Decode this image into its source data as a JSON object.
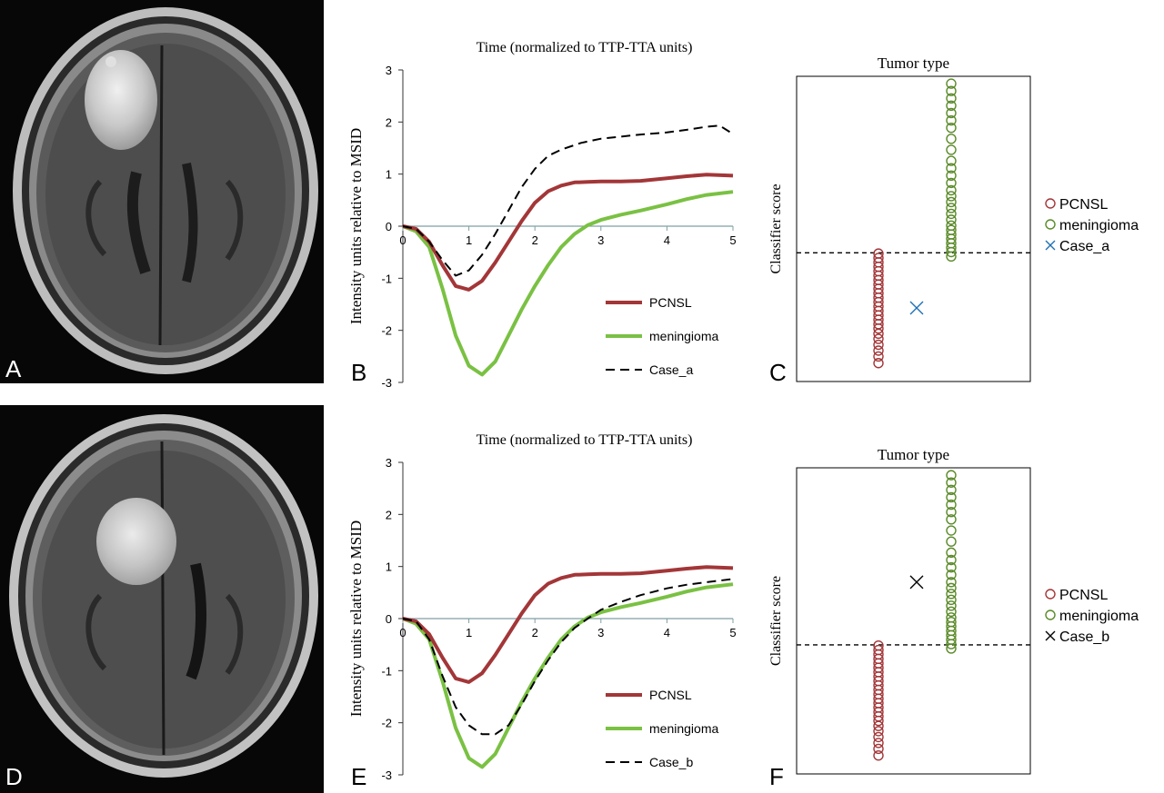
{
  "figure": {
    "panels": {
      "a": {
        "letter": "A"
      },
      "b": {
        "letter": "B"
      },
      "c": {
        "letter": "C"
      },
      "d": {
        "letter": "D"
      },
      "e": {
        "letter": "E"
      },
      "f": {
        "letter": "F"
      }
    }
  },
  "chart_data": [
    {
      "panel": "B",
      "type": "line",
      "title": "Time (normalized to TTP-TTA units)",
      "xlabel": "",
      "ylabel": "Intensity units relative to MSID",
      "xlim": [
        0,
        5
      ],
      "ylim": [
        -3,
        3
      ],
      "xticks": [
        "0",
        "1",
        "2",
        "3",
        "4",
        "5"
      ],
      "yticks": [
        "3",
        "2",
        "1",
        "0",
        "-1",
        "-2",
        "-3"
      ],
      "legend_position": "bottom-right",
      "series": [
        {
          "name": "PCNSL",
          "color": "#a33638",
          "style": "solid",
          "x": [
            0,
            0.2,
            0.4,
            0.6,
            0.8,
            1.0,
            1.2,
            1.4,
            1.6,
            1.8,
            2.0,
            2.2,
            2.4,
            2.6,
            2.8,
            3.0,
            3.3,
            3.6,
            4.0,
            4.3,
            4.6,
            5.0
          ],
          "y": [
            0,
            -0.05,
            -0.3,
            -0.75,
            -1.15,
            -1.22,
            -1.05,
            -0.7,
            -0.3,
            0.1,
            0.45,
            0.67,
            0.78,
            0.84,
            0.85,
            0.86,
            0.86,
            0.87,
            0.92,
            0.96,
            0.99,
            0.97
          ]
        },
        {
          "name": "meningioma",
          "color": "#7ac143",
          "style": "solid",
          "x": [
            0,
            0.2,
            0.4,
            0.6,
            0.8,
            1.0,
            1.2,
            1.4,
            1.6,
            1.8,
            2.0,
            2.2,
            2.4,
            2.6,
            2.8,
            3.0,
            3.3,
            3.6,
            4.0,
            4.3,
            4.6,
            5.0
          ],
          "y": [
            0,
            -0.1,
            -0.4,
            -1.2,
            -2.1,
            -2.68,
            -2.85,
            -2.6,
            -2.1,
            -1.6,
            -1.15,
            -0.75,
            -0.4,
            -0.15,
            0.02,
            0.12,
            0.22,
            0.3,
            0.42,
            0.52,
            0.6,
            0.66
          ]
        },
        {
          "name": "Case_a",
          "color": "#000000",
          "style": "dashed",
          "x": [
            0,
            0.2,
            0.4,
            0.6,
            0.8,
            1.0,
            1.2,
            1.4,
            1.6,
            1.8,
            2.0,
            2.2,
            2.4,
            2.7,
            3.0,
            3.3,
            3.6,
            4.0,
            4.3,
            4.6,
            4.8,
            5.0
          ],
          "y": [
            0,
            -0.05,
            -0.3,
            -0.65,
            -0.95,
            -0.85,
            -0.55,
            -0.15,
            0.3,
            0.75,
            1.1,
            1.35,
            1.47,
            1.6,
            1.68,
            1.72,
            1.76,
            1.8,
            1.85,
            1.91,
            1.93,
            1.77
          ]
        }
      ]
    },
    {
      "panel": "C",
      "type": "scatter",
      "title": "Tumor type",
      "xlabel": "",
      "ylabel": "Classifier score",
      "threshold": "dashed horizontal line",
      "legend_position": "right",
      "series": [
        {
          "name": "PCNSL",
          "color": "#a33638",
          "marker": "circle-open",
          "y": [
            -0.45,
            -0.36,
            -0.28,
            -0.2,
            -0.12,
            -0.05,
            0.02,
            0.08,
            0.14,
            0.2,
            0.26,
            0.32,
            0.38,
            0.44,
            0.5,
            0.56,
            0.62,
            0.68,
            0.74,
            0.8,
            0.86,
            0.92,
            0.98,
            1.04
          ]
        },
        {
          "name": "meningioma",
          "color": "#5a8a28",
          "marker": "circle-open",
          "y": [
            1.0,
            1.06,
            1.12,
            1.18,
            1.24,
            1.3,
            1.36,
            1.42,
            1.5,
            1.58,
            1.66,
            1.74,
            1.82,
            1.9,
            2.0,
            2.1,
            2.2,
            2.3,
            2.45,
            2.6,
            2.75,
            2.85,
            2.95,
            3.05,
            3.15,
            3.25,
            3.35
          ]
        },
        {
          "name": "Case_a",
          "color": "#1f6fb5",
          "marker": "x",
          "y": [
            0.3
          ]
        }
      ]
    },
    {
      "panel": "E",
      "type": "line",
      "title": "Time (normalized to TTP-TTA units)",
      "xlabel": "",
      "ylabel": "Intensity units relative to MSID",
      "xlim": [
        0,
        5
      ],
      "ylim": [
        -3,
        3
      ],
      "xticks": [
        "0",
        "1",
        "2",
        "3",
        "4",
        "5"
      ],
      "yticks": [
        "3",
        "2",
        "1",
        "0",
        "-1",
        "-2",
        "-3"
      ],
      "legend_position": "bottom-right",
      "series": [
        {
          "name": "PCNSL",
          "color": "#a33638",
          "style": "solid",
          "x": [
            0,
            0.2,
            0.4,
            0.6,
            0.8,
            1.0,
            1.2,
            1.4,
            1.6,
            1.8,
            2.0,
            2.2,
            2.4,
            2.6,
            2.8,
            3.0,
            3.3,
            3.6,
            4.0,
            4.3,
            4.6,
            5.0
          ],
          "y": [
            0,
            -0.05,
            -0.3,
            -0.75,
            -1.15,
            -1.22,
            -1.05,
            -0.7,
            -0.3,
            0.1,
            0.45,
            0.67,
            0.78,
            0.84,
            0.85,
            0.86,
            0.86,
            0.87,
            0.92,
            0.96,
            0.99,
            0.97
          ]
        },
        {
          "name": "meningioma",
          "color": "#7ac143",
          "style": "solid",
          "x": [
            0,
            0.2,
            0.4,
            0.6,
            0.8,
            1.0,
            1.2,
            1.4,
            1.6,
            1.8,
            2.0,
            2.2,
            2.4,
            2.6,
            2.8,
            3.0,
            3.3,
            3.6,
            4.0,
            4.3,
            4.6,
            5.0
          ],
          "y": [
            0,
            -0.1,
            -0.4,
            -1.2,
            -2.1,
            -2.68,
            -2.85,
            -2.6,
            -2.1,
            -1.6,
            -1.15,
            -0.75,
            -0.4,
            -0.15,
            0.02,
            0.12,
            0.22,
            0.3,
            0.42,
            0.52,
            0.6,
            0.66
          ]
        },
        {
          "name": "Case_b",
          "color": "#000000",
          "style": "dashed",
          "x": [
            0,
            0.2,
            0.4,
            0.6,
            0.8,
            1.0,
            1.2,
            1.4,
            1.6,
            1.8,
            2.0,
            2.2,
            2.4,
            2.6,
            2.8,
            3.0,
            3.3,
            3.6,
            4.0,
            4.3,
            4.6,
            5.0
          ],
          "y": [
            0,
            -0.05,
            -0.4,
            -1.1,
            -1.7,
            -2.05,
            -2.22,
            -2.22,
            -2.05,
            -1.65,
            -1.2,
            -0.8,
            -0.45,
            -0.18,
            0.0,
            0.17,
            0.32,
            0.45,
            0.58,
            0.65,
            0.7,
            0.76
          ]
        }
      ]
    },
    {
      "panel": "F",
      "type": "scatter",
      "title": "Tumor type",
      "xlabel": "",
      "ylabel": "Classifier score",
      "threshold": "dashed horizontal line",
      "legend_position": "right",
      "series": [
        {
          "name": "PCNSL",
          "color": "#a33638",
          "marker": "circle-open",
          "y": [
            -0.45,
            -0.36,
            -0.28,
            -0.2,
            -0.12,
            -0.05,
            0.02,
            0.08,
            0.14,
            0.2,
            0.26,
            0.32,
            0.38,
            0.44,
            0.5,
            0.56,
            0.62,
            0.68,
            0.74,
            0.8,
            0.86,
            0.92,
            0.98,
            1.04
          ]
        },
        {
          "name": "meningioma",
          "color": "#5a8a28",
          "marker": "circle-open",
          "y": [
            1.0,
            1.06,
            1.12,
            1.18,
            1.24,
            1.3,
            1.36,
            1.42,
            1.5,
            1.58,
            1.66,
            1.74,
            1.82,
            1.9,
            2.0,
            2.1,
            2.2,
            2.3,
            2.45,
            2.6,
            2.75,
            2.85,
            2.95,
            3.05,
            3.15,
            3.25,
            3.35
          ]
        },
        {
          "name": "Case_b",
          "color": "#000000",
          "marker": "x",
          "y": [
            1.9
          ]
        }
      ]
    }
  ]
}
